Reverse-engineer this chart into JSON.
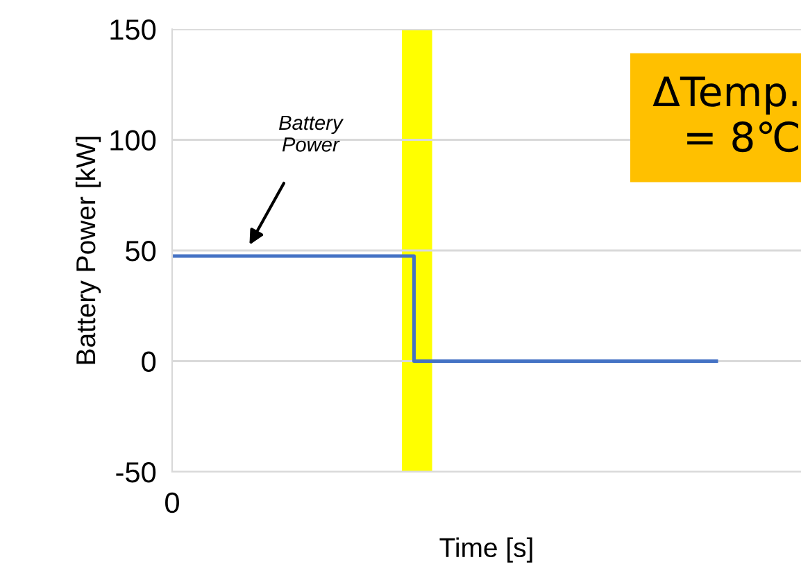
{
  "chart_data": {
    "type": "step",
    "xlabel": "Time [s]",
    "ylabel": "Battery Power [kW]",
    "categories": [
      null,
      null,
      null,
      null,
      null,
      null,
      null,
      null,
      null,
      null
    ],
    "series": [
      {
        "color": "#4472c4",
        "values": [
          47.5,
          47.5,
          47.5,
          47.5,
          0,
          0,
          0,
          0,
          0,
          0
        ]
      }
    ],
    "ylim": [
      -50,
      150
    ],
    "yticks": [
      -50,
      0,
      50,
      100,
      150
    ],
    "grid": "y",
    "tick_labels": "y",
    "annotations": [
      "Battery\nPower",
      "ΔTemp.\n= 8℃",
      "0"
    ]
  }
}
